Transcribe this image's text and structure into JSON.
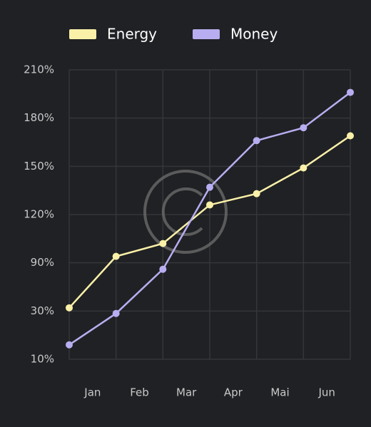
{
  "chart_data": {
    "type": "line",
    "categories": [
      "Jan",
      "Feb",
      "Mar",
      "Apr",
      "Mai",
      "Jun",
      null
    ],
    "series": [
      {
        "name": "Energy",
        "color": "#fbf0a8",
        "values": [
          34,
          94,
          102,
          126,
          133,
          149,
          169
        ]
      },
      {
        "name": "Money",
        "color": "#b8adf0",
        "values": [
          16,
          29,
          82,
          137,
          166,
          174,
          196
        ]
      }
    ],
    "ylim": [
      10,
      210
    ],
    "yticks": [
      {
        "value": 10,
        "label": "10%"
      },
      {
        "value": 30,
        "label": "30%"
      },
      {
        "value": 90,
        "label": "90%"
      },
      {
        "value": 120,
        "label": "120%"
      },
      {
        "value": 150,
        "label": "150%"
      },
      {
        "value": 180,
        "label": "180%"
      },
      {
        "value": 210,
        "label": "210%"
      }
    ],
    "grid": true,
    "legend": "top"
  }
}
